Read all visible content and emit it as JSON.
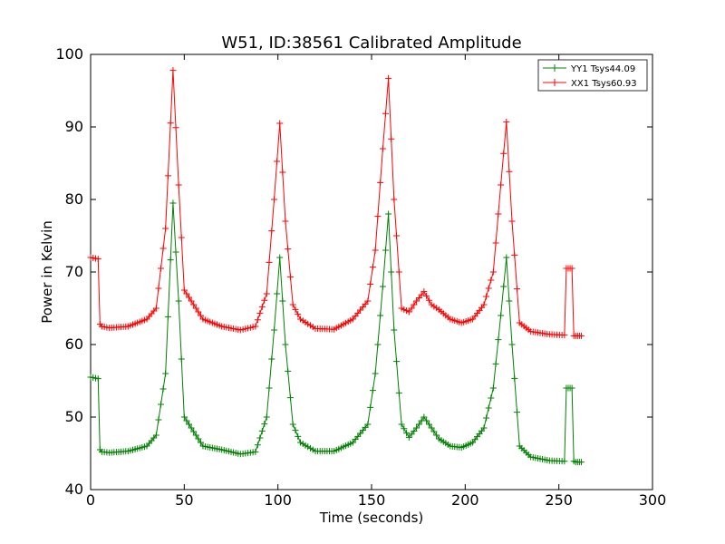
{
  "chart_data": {
    "type": "line",
    "title": "W51, ID:38561 Calibrated Amplitude",
    "xlabel": "Time (seconds)",
    "ylabel": "Power in Kelvin",
    "xlim": [
      0,
      300
    ],
    "ylim": [
      40,
      100
    ],
    "xticks": [
      0,
      50,
      100,
      150,
      200,
      250,
      300
    ],
    "yticks": [
      40,
      50,
      60,
      70,
      80,
      90,
      100
    ],
    "grid": false,
    "legend_position": "top-right",
    "marker": "+",
    "series": [
      {
        "name": "YY1 Tsys44.09",
        "color": "#008000",
        "x": [
          0,
          4,
          5,
          6,
          10,
          20,
          30,
          35,
          40,
          44,
          47,
          50,
          55,
          60,
          70,
          80,
          88,
          94,
          98,
          101,
          104,
          108,
          112,
          120,
          130,
          140,
          148,
          152,
          156,
          159,
          162,
          166,
          170,
          174,
          178,
          182,
          186,
          192,
          198,
          204,
          210,
          215,
          219,
          222,
          225,
          229,
          235,
          245,
          253,
          254,
          255,
          256,
          257,
          258,
          259,
          260,
          262
        ],
        "y": [
          55.5,
          55.3,
          45.5,
          45.2,
          45.1,
          45.3,
          46.0,
          47.5,
          56.0,
          79.5,
          66.0,
          50.0,
          48.0,
          46.0,
          45.5,
          44.9,
          45.2,
          50.0,
          62.0,
          72.0,
          60.0,
          49.0,
          46.5,
          45.3,
          45.3,
          46.5,
          49.0,
          56.0,
          68.0,
          78.0,
          62.0,
          49.0,
          47.2,
          48.5,
          50.0,
          48.5,
          47.0,
          46.0,
          45.8,
          46.5,
          48.5,
          54.0,
          64.0,
          72.0,
          60.0,
          46.0,
          44.5,
          44.0,
          43.9,
          54.0,
          54.0,
          54.0,
          54.0,
          43.9,
          43.8,
          43.8,
          43.8
        ]
      },
      {
        "name": "XX1 Tsys60.93",
        "color": "#ff0000",
        "x": [
          0,
          4,
          5,
          6,
          10,
          20,
          30,
          35,
          40,
          44,
          47,
          50,
          55,
          60,
          70,
          80,
          88,
          94,
          98,
          101,
          104,
          108,
          112,
          120,
          130,
          140,
          148,
          152,
          156,
          159,
          162,
          166,
          170,
          174,
          178,
          182,
          186,
          192,
          198,
          204,
          210,
          215,
          219,
          222,
          225,
          229,
          235,
          245,
          253,
          254,
          255,
          256,
          257,
          258,
          259,
          260,
          262
        ],
        "y": [
          72.0,
          71.8,
          62.8,
          62.5,
          62.3,
          62.5,
          63.5,
          65.0,
          76.0,
          97.8,
          82.0,
          67.5,
          65.5,
          63.5,
          62.5,
          62.0,
          62.5,
          67.0,
          80.0,
          90.5,
          77.0,
          65.5,
          63.5,
          62.2,
          62.1,
          63.5,
          66.0,
          73.0,
          87.0,
          96.7,
          80.0,
          65.0,
          64.5,
          66.0,
          67.3,
          65.5,
          64.8,
          63.5,
          63.0,
          63.5,
          65.5,
          70.0,
          82.0,
          90.7,
          77.0,
          63.0,
          61.8,
          61.4,
          61.3,
          70.5,
          70.5,
          70.5,
          70.5,
          61.2,
          61.2,
          61.2,
          61.2
        ]
      }
    ]
  }
}
